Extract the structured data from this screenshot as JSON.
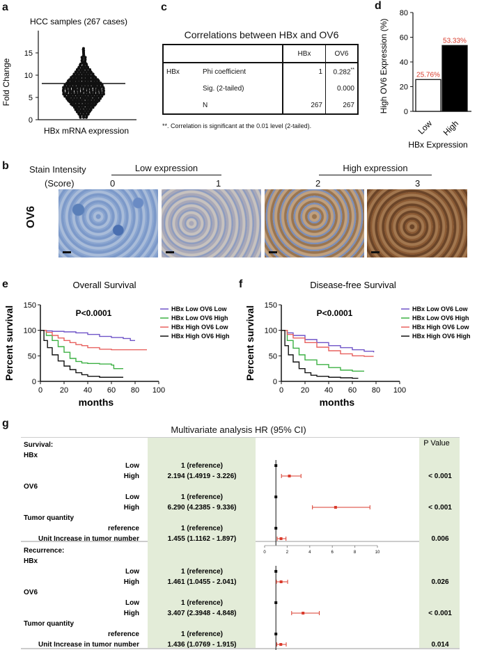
{
  "panels": {
    "a": "a",
    "b": "b",
    "c": "c",
    "d": "d",
    "e": "e",
    "f": "f",
    "g": "g"
  },
  "panel_a": {
    "title": "HCC samples (267 cases)",
    "ylabel": "Fold Change",
    "xlabel": "HBx mRNA expression",
    "yticks": [
      "0",
      "5",
      "10",
      "15"
    ]
  },
  "panel_c": {
    "title": "Correlations between HBx and OV6",
    "col1": "HBx",
    "col2": "OV6",
    "row_var": "HBx",
    "rows": [
      {
        "label": "Phi coefficient",
        "hbx": "1",
        "ov6": "0.282",
        "ov6_mark": "**"
      },
      {
        "label": "Sig. (2-tailed)",
        "hbx": "",
        "ov6": "0.000",
        "ov6_mark": ""
      },
      {
        "label": "N",
        "hbx": "267",
        "ov6": "267",
        "ov6_mark": ""
      }
    ],
    "footnote": "**. Correlation is significant at the 0.01 level (2-tailed)."
  },
  "chart_data": [
    {
      "type": "bar",
      "panel": "d",
      "categories": [
        "Low",
        "High"
      ],
      "values": [
        25.76,
        53.33
      ],
      "value_labels": [
        "25.76%",
        "53.33%"
      ],
      "ylabel": "High OV6 Expression (%)",
      "xlabel": "HBx Expression",
      "ylim": [
        0,
        80
      ],
      "yticks": [
        "0",
        "20",
        "40",
        "60",
        "80"
      ],
      "bar_colors": [
        "#ffffff",
        "#000000"
      ],
      "label_color": "#d93a2b"
    },
    {
      "type": "line",
      "panel": "e",
      "title": "Overall Survival",
      "annotation": "P<0.0001",
      "xlabel": "months",
      "ylabel": "Percent survival",
      "xlim": [
        0,
        100
      ],
      "ylim": [
        0,
        150
      ],
      "xticks": [
        "0",
        "20",
        "40",
        "60",
        "80",
        "100"
      ],
      "yticks": [
        "0",
        "50",
        "100",
        "150"
      ],
      "series": [
        {
          "name": "HBx Low OV6 Low",
          "color": "#6f54c8",
          "x": [
            0,
            5,
            10,
            20,
            30,
            40,
            50,
            60,
            70,
            76,
            80
          ],
          "y": [
            100,
            99,
            98,
            97,
            95,
            92,
            88,
            86,
            84,
            80,
            80
          ]
        },
        {
          "name": "HBx Low OV6 High",
          "color": "#3cb043",
          "x": [
            0,
            5,
            10,
            15,
            20,
            25,
            30,
            35,
            40,
            50,
            60,
            62,
            70
          ],
          "y": [
            100,
            90,
            80,
            68,
            57,
            45,
            39,
            36,
            35,
            34,
            32,
            25,
            25
          ]
        },
        {
          "name": "HBx High OV6 Low",
          "color": "#e8605e",
          "x": [
            0,
            5,
            10,
            15,
            20,
            25,
            30,
            35,
            40,
            50,
            60,
            70,
            80,
            90
          ],
          "y": [
            100,
            96,
            90,
            85,
            80,
            76,
            72,
            70,
            66,
            63,
            62,
            62,
            62,
            62
          ]
        },
        {
          "name": "HBx High OV6 High",
          "color": "#111111",
          "x": [
            0,
            3,
            6,
            10,
            15,
            20,
            25,
            30,
            35,
            40,
            50,
            60,
            70
          ],
          "y": [
            100,
            80,
            66,
            52,
            40,
            30,
            23,
            17,
            13,
            10,
            8,
            8,
            8
          ]
        }
      ]
    },
    {
      "type": "line",
      "panel": "f",
      "title": "Disease-free Survival",
      "annotation": "P<0.0001",
      "xlabel": "months",
      "ylabel": "Percent survival",
      "xlim": [
        0,
        100
      ],
      "ylim": [
        0,
        150
      ],
      "xticks": [
        "0",
        "20",
        "40",
        "60",
        "80",
        "100"
      ],
      "yticks": [
        "0",
        "50",
        "100",
        "150"
      ],
      "series": [
        {
          "name": "HBx Low OV6 Low",
          "color": "#6f54c8",
          "x": [
            0,
            5,
            10,
            20,
            30,
            40,
            50,
            60,
            70,
            78
          ],
          "y": [
            100,
            95,
            90,
            82,
            76,
            70,
            66,
            62,
            59,
            57
          ]
        },
        {
          "name": "HBx Low OV6 High",
          "color": "#3cb043",
          "x": [
            0,
            5,
            10,
            15,
            20,
            30,
            40,
            50,
            60,
            70
          ],
          "y": [
            100,
            80,
            65,
            52,
            42,
            33,
            27,
            22,
            20,
            20
          ]
        },
        {
          "name": "HBx High OV6 Low",
          "color": "#e8605e",
          "x": [
            0,
            5,
            10,
            20,
            30,
            40,
            50,
            60,
            70,
            78
          ],
          "y": [
            100,
            92,
            85,
            76,
            67,
            60,
            54,
            50,
            49,
            49
          ]
        },
        {
          "name": "HBx High OV6 High",
          "color": "#111111",
          "x": [
            0,
            3,
            6,
            10,
            15,
            20,
            25,
            30,
            40,
            50,
            60,
            65
          ],
          "y": [
            100,
            70,
            52,
            38,
            25,
            17,
            12,
            10,
            8,
            7,
            6,
            6
          ]
        }
      ]
    },
    {
      "type": "scatter",
      "panel": "a",
      "note": "dot strip of 267 HBx mRNA fold-change values; mean line ≈ 8",
      "y_mean": 8,
      "y_range": [
        0.5,
        16
      ],
      "ylim": [
        0,
        20
      ]
    }
  ],
  "panel_b": {
    "intensity_label_1": "Stain Intensity",
    "intensity_label_2": "(Score)",
    "low_label": "Low expression",
    "high_label": "High expression",
    "scores": [
      "0",
      "1",
      "2",
      "3"
    ],
    "row_label": "OV6"
  },
  "panel_g": {
    "title": "Multivariate analysis HR (95% CI)",
    "pvalue_header": "P Value",
    "sections": [
      {
        "header": "Survival:",
        "groups": [
          {
            "name": "HBx",
            "rows": [
              {
                "label": "Low",
                "hr": "1 (reference)",
                "p": ""
              },
              {
                "label": "High",
                "hr": "2.194 (1.4919 - 3.226)",
                "p": "< 0.001"
              }
            ]
          },
          {
            "name": "OV6",
            "rows": [
              {
                "label": "Low",
                "hr": "1 (reference)",
                "p": ""
              },
              {
                "label": "High",
                "hr": "6.290 (4.2385 - 9.336)",
                "p": "< 0.001"
              }
            ]
          },
          {
            "name": "Tumor quantity",
            "rows": [
              {
                "label": "reference",
                "hr": "1 (reference)",
                "p": ""
              },
              {
                "label": "Unit Increase in tumor number",
                "hr": "1.455 (1.1162 - 1.897)",
                "p": "0.006"
              }
            ]
          }
        ],
        "forest": [
          {
            "hr": 1,
            "lo": 1,
            "hi": 1
          },
          {
            "hr": 2.194,
            "lo": 1.4919,
            "hi": 3.226
          },
          {
            "hr": 1,
            "lo": 1,
            "hi": 1
          },
          {
            "hr": 6.29,
            "lo": 4.2385,
            "hi": 9.336
          },
          {
            "hr": 1,
            "lo": 1,
            "hi": 1
          },
          {
            "hr": 1.455,
            "lo": 1.1162,
            "hi": 1.897
          }
        ]
      },
      {
        "header": "Recurrence:",
        "groups": [
          {
            "name": "HBx",
            "rows": [
              {
                "label": "Low",
                "hr": "1 (reference)",
                "p": ""
              },
              {
                "label": "High",
                "hr": "1.461 (1.0455 - 2.041)",
                "p": "0.026"
              }
            ]
          },
          {
            "name": "OV6",
            "rows": [
              {
                "label": "Low",
                "hr": "1 (reference)",
                "p": ""
              },
              {
                "label": "High",
                "hr": "3.407 (2.3948 - 4.848)",
                "p": "< 0.001"
              }
            ]
          },
          {
            "name": "Tumor quantity",
            "rows": [
              {
                "label": "reference",
                "hr": "1 (reference)",
                "p": ""
              },
              {
                "label": "Unit Increase in tumor number",
                "hr": "1.436 (1.0769 - 1.915)",
                "p": "0.014"
              }
            ]
          }
        ],
        "forest": [
          {
            "hr": 1,
            "lo": 1,
            "hi": 1
          },
          {
            "hr": 1.461,
            "lo": 1.0455,
            "hi": 2.041
          },
          {
            "hr": 1,
            "lo": 1,
            "hi": 1
          },
          {
            "hr": 3.407,
            "lo": 2.3948,
            "hi": 4.848
          },
          {
            "hr": 1,
            "lo": 1,
            "hi": 1
          },
          {
            "hr": 1.436,
            "lo": 1.0769,
            "hi": 1.915
          }
        ]
      }
    ],
    "forest_ticks": [
      "0",
      "2",
      "4",
      "6",
      "8",
      "10"
    ],
    "colors": {
      "shade": "#e3ecd8",
      "ci": "#d93a2b",
      "marker": "#111111"
    }
  }
}
